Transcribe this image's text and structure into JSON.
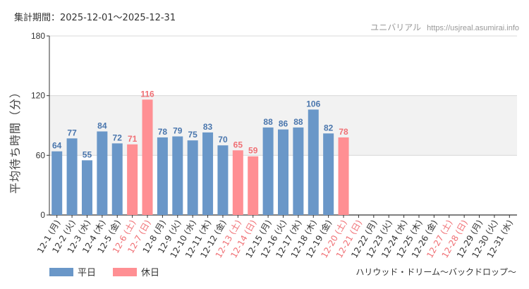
{
  "header": {
    "period": "集計期間：2025-12-01～2025-12-31",
    "brand_name": "ユニバリアル",
    "brand_site": "https://usjreal.asumirai.info"
  },
  "footer": {
    "attraction": "ハリウッド・ドリーム～バックドロップ～"
  },
  "legend": [
    {
      "label": "平日",
      "color": "#6a97c8"
    },
    {
      "label": "休日",
      "color": "#ff8f93"
    }
  ],
  "colors": {
    "weekday": "#6a97c8",
    "holiday": "#ff8f93",
    "weekday_label": "#4a76ad",
    "holiday_label": "#f07075",
    "band": "#f2f2f2"
  },
  "chart_data": {
    "type": "bar",
    "title": "",
    "ylabel": "平均待ち時間（分）",
    "xlabel": "",
    "ylim": [
      0,
      180
    ],
    "yticks": [
      0,
      60,
      120,
      180
    ],
    "shaded_band": [
      60,
      120
    ],
    "categories": [
      "12-1 (月)",
      "12-2 (火)",
      "12-3 (水)",
      "12-4 (木)",
      "12-5 (金)",
      "12-6 (土)",
      "12-7 (日)",
      "12-8 (月)",
      "12-9 (火)",
      "12-10 (水)",
      "12-11 (木)",
      "12-12 (金)",
      "12-13 (土)",
      "12-14 (日)",
      "12-15 (月)",
      "12-16 (火)",
      "12-17 (水)",
      "12-18 (木)",
      "12-19 (金)",
      "12-20 (土)",
      "12-21 (日)",
      "12-22 (月)",
      "12-23 (火)",
      "12-24 (水)",
      "12-25 (木)",
      "12-26 (金)",
      "12-27 (土)",
      "12-28 (日)",
      "12-29 (月)",
      "12-30 (火)",
      "12-31 (水)"
    ],
    "values": [
      64,
      77,
      55,
      84,
      72,
      71,
      116,
      78,
      79,
      75,
      83,
      70,
      65,
      59,
      88,
      86,
      88,
      106,
      82,
      78,
      null,
      null,
      null,
      null,
      null,
      null,
      null,
      null,
      null,
      null,
      null
    ],
    "holiday": [
      false,
      false,
      false,
      false,
      false,
      true,
      true,
      false,
      false,
      false,
      false,
      false,
      true,
      true,
      false,
      false,
      false,
      false,
      false,
      true,
      true,
      false,
      false,
      false,
      false,
      false,
      true,
      true,
      false,
      false,
      false
    ]
  }
}
